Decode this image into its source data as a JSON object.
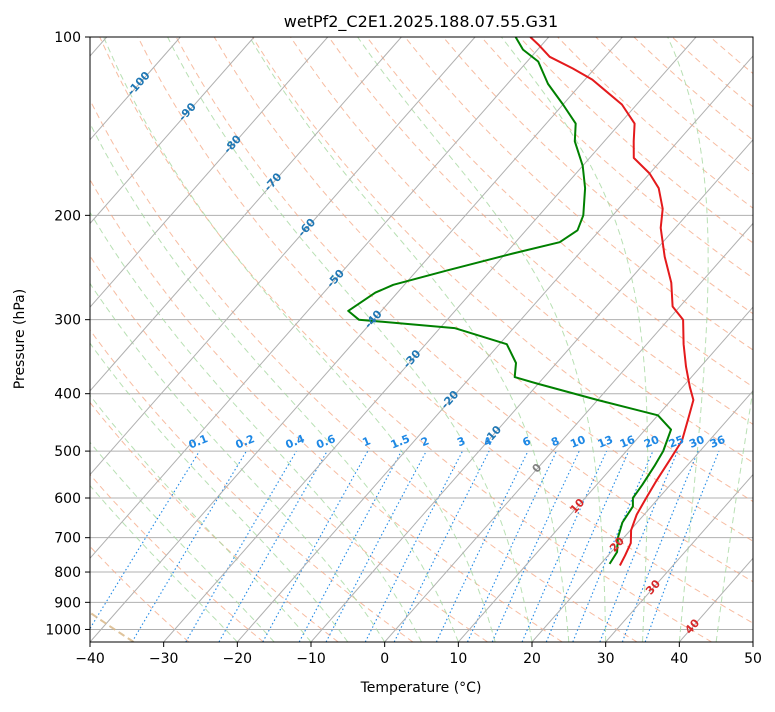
{
  "chart_data": {
    "type": "line",
    "chart_kind": "skew-T log-P diagram",
    "title": "wetPf2_C2E1.2025.188.07.55.G31",
    "xlabel": "Temperature (°C)",
    "ylabel": "Pressure (hPa)",
    "xlim": [
      -40,
      50
    ],
    "ylim": [
      1050,
      100
    ],
    "yscale": "log",
    "x_ticks": [
      -40,
      -30,
      -20,
      -10,
      0,
      10,
      20,
      30,
      40,
      50
    ],
    "y_ticks": [
      100,
      200,
      300,
      400,
      500,
      600,
      700,
      800,
      900,
      1000
    ],
    "x_tick_labels": [
      "−40",
      "−30",
      "−20",
      "−10",
      "0",
      "10",
      "20",
      "30",
      "40",
      "50"
    ],
    "y_tick_labels": [
      "100",
      "200",
      "300",
      "400",
      "500",
      "600",
      "700",
      "800",
      "900",
      "1000"
    ],
    "isotherm_labels": [
      {
        "text": "-100",
        "T": -100,
        "p": 120
      },
      {
        "text": "-90",
        "T": -90,
        "p": 134
      },
      {
        "text": "-80",
        "T": -80,
        "p": 152
      },
      {
        "text": "-70",
        "T": -70,
        "p": 176
      },
      {
        "text": "-60",
        "T": -60,
        "p": 210
      },
      {
        "text": "-50",
        "T": -50,
        "p": 256
      },
      {
        "text": "-40",
        "T": -40,
        "p": 300
      },
      {
        "text": "-30",
        "T": -30,
        "p": 350
      },
      {
        "text": "-20",
        "T": -20,
        "p": 410
      },
      {
        "text": "-10",
        "T": -10,
        "p": 470
      },
      {
        "text": "0",
        "T": 0,
        "p": 535
      },
      {
        "text": "10",
        "T": 10,
        "p": 620
      },
      {
        "text": "20",
        "T": 20,
        "p": 720
      },
      {
        "text": "30",
        "T": 30,
        "p": 850
      },
      {
        "text": "40",
        "T": 40,
        "p": 990
      }
    ],
    "mixing_ratio_labels": [
      "0.1",
      "0.2",
      "0.4",
      "0.6",
      "1",
      "1.5",
      "2",
      "3",
      "4",
      "6",
      "8",
      "10",
      "13",
      "16",
      "20",
      "25",
      "30",
      "36"
    ],
    "mixing_ratio_label_pressure": 500,
    "series": [
      {
        "role": "temperature",
        "color": "#e41a1c",
        "points": [
          [
            22.8,
            780
          ],
          [
            22.3,
            750
          ],
          [
            21.6,
            715
          ],
          [
            20.1,
            680
          ],
          [
            19.0,
            640
          ],
          [
            18.3,
            600
          ],
          [
            17.6,
            560
          ],
          [
            17.0,
            520
          ],
          [
            16.3,
            480
          ],
          [
            14.5,
            440
          ],
          [
            13.0,
            410
          ],
          [
            11.0,
            390
          ],
          [
            8.0,
            360
          ],
          [
            5.0,
            330
          ],
          [
            2.0,
            300
          ],
          [
            -1.0,
            285
          ],
          [
            -4.0,
            260
          ],
          [
            -8.0,
            235
          ],
          [
            -12.0,
            210
          ],
          [
            -14.0,
            195
          ],
          [
            -17.0,
            180
          ],
          [
            -20.0,
            170
          ],
          [
            -24.0,
            160
          ],
          [
            -26.0,
            150
          ],
          [
            -28.0,
            140
          ],
          [
            -32.0,
            130
          ],
          [
            -36.0,
            123
          ],
          [
            -39.0,
            118
          ],
          [
            -43.0,
            113
          ],
          [
            -47.5,
            108
          ],
          [
            -50.5,
            103
          ],
          [
            -52.5,
            100
          ]
        ]
      },
      {
        "role": "dewpoint",
        "color": "#008000",
        "points": [
          [
            21.2,
            775
          ],
          [
            20.8,
            740
          ],
          [
            19.2,
            700
          ],
          [
            18.0,
            660
          ],
          [
            17.5,
            620
          ],
          [
            16.5,
            600
          ],
          [
            16.2,
            570
          ],
          [
            15.6,
            530
          ],
          [
            15.0,
            500
          ],
          [
            13.5,
            460
          ],
          [
            10.0,
            435
          ],
          [
            0.0,
            410
          ],
          [
            -10.0,
            385
          ],
          [
            -14.0,
            375
          ],
          [
            -15.5,
            355
          ],
          [
            -19.0,
            330
          ],
          [
            -28.0,
            310
          ],
          [
            -42.0,
            300
          ],
          [
            -44.5,
            290
          ],
          [
            -43.0,
            270
          ],
          [
            -41.5,
            262
          ],
          [
            -36.0,
            248
          ],
          [
            -29.0,
            232
          ],
          [
            -24.0,
            222
          ],
          [
            -23.0,
            212
          ],
          [
            -24.0,
            200
          ],
          [
            -27.0,
            180
          ],
          [
            -30.0,
            165
          ],
          [
            -34.0,
            150
          ],
          [
            -36.0,
            140
          ],
          [
            -40.0,
            130
          ],
          [
            -44.5,
            120
          ],
          [
            -48.5,
            110
          ],
          [
            -52.0,
            105
          ],
          [
            -54.5,
            100
          ]
        ]
      }
    ],
    "colors": {
      "temperature": "#e41a1c",
      "dewpoint": "#008000",
      "grid": "#b0b0b0",
      "isotherm_label": "#1f77b4",
      "mixing_ratio": "#1e88e5",
      "dry_adiabat": "#f4a582",
      "moist_adiabat": "#a6d8a0",
      "lcl_curve": "#d9b98a"
    },
    "grid": true
  }
}
